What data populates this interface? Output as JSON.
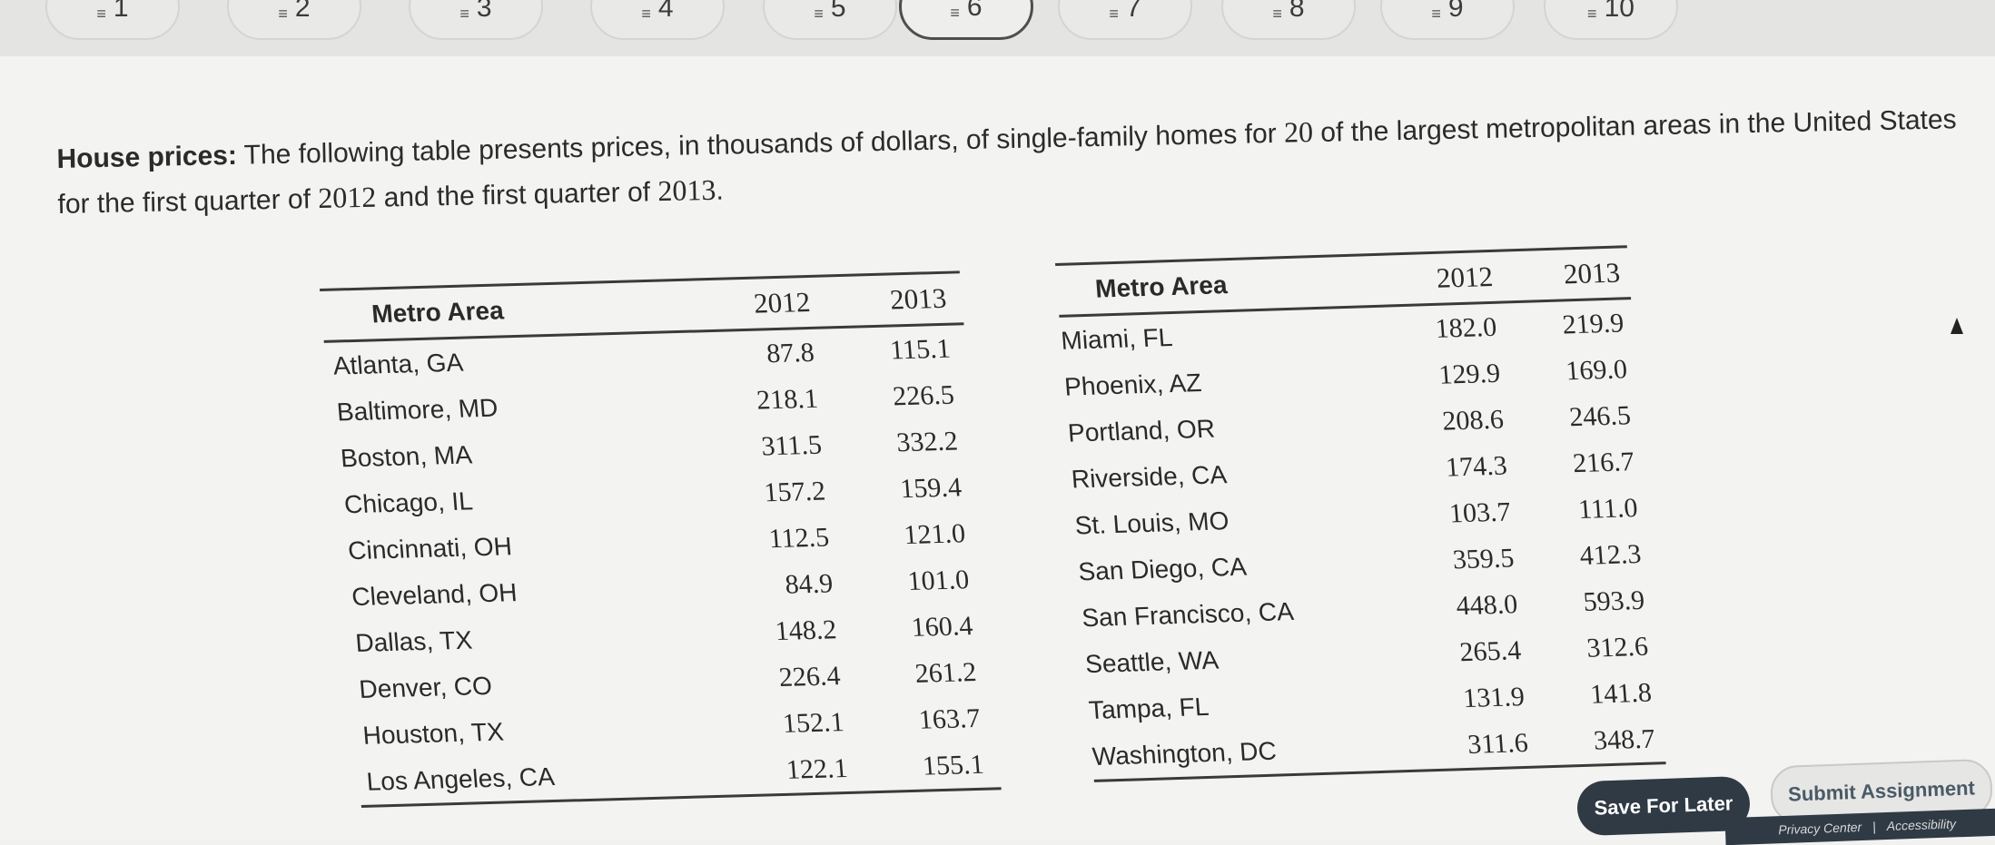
{
  "question_nav": [
    {
      "label": "1",
      "active": false
    },
    {
      "label": "2",
      "active": false
    },
    {
      "label": "3",
      "active": false
    },
    {
      "label": "4",
      "active": false
    },
    {
      "label": "5",
      "active": false
    },
    {
      "label": "6",
      "active": true
    },
    {
      "label": "7",
      "active": false
    },
    {
      "label": "8",
      "active": false
    },
    {
      "label": "9",
      "active": false
    },
    {
      "label": "10",
      "active": false
    }
  ],
  "prompt": {
    "title": "House prices:",
    "text_1": " The following table presents prices, in thousands of dollars, of single-family homes for ",
    "num_1": "20",
    "text_2": " of the largest metropolitan areas in the United States for the first quarter of ",
    "num_2": "2012",
    "text_3": " and the first quarter of ",
    "num_3": "2013",
    "text_4": "."
  },
  "table_left": {
    "headers": [
      "Metro Area",
      "2012",
      "2013"
    ],
    "rows": [
      [
        "Atlanta, GA",
        "87.8",
        "115.1"
      ],
      [
        "Baltimore, MD",
        "218.1",
        "226.5"
      ],
      [
        "Boston, MA",
        "311.5",
        "332.2"
      ],
      [
        "Chicago, IL",
        "157.2",
        "159.4"
      ],
      [
        "Cincinnati, OH",
        "112.5",
        "121.0"
      ],
      [
        "Cleveland, OH",
        "84.9",
        "101.0"
      ],
      [
        "Dallas, TX",
        "148.2",
        "160.4"
      ],
      [
        "Denver, CO",
        "226.4",
        "261.2"
      ],
      [
        "Houston, TX",
        "152.1",
        "163.7"
      ],
      [
        "Los Angeles, CA",
        "122.1",
        "155.1"
      ]
    ]
  },
  "table_right": {
    "headers": [
      "Metro Area",
      "2012",
      "2013"
    ],
    "rows": [
      [
        "Miami, FL",
        "182.0",
        "219.9"
      ],
      [
        "Phoenix, AZ",
        "129.9",
        "169.0"
      ],
      [
        "Portland, OR",
        "208.6",
        "246.5"
      ],
      [
        "Riverside, CA",
        "174.3",
        "216.7"
      ],
      [
        "St. Louis, MO",
        "103.7",
        "111.0"
      ],
      [
        "San Diego, CA",
        "359.5",
        "412.3"
      ],
      [
        "San Francisco, CA",
        "448.0",
        "593.9"
      ],
      [
        "Seattle, WA",
        "265.4",
        "312.6"
      ],
      [
        "Tampa, FL",
        "131.9",
        "141.8"
      ],
      [
        "Washington, DC",
        "311.6",
        "348.7"
      ]
    ]
  },
  "actions": {
    "save_label": "Save For Later",
    "submit_label": "Submit Assignment"
  },
  "footer": {
    "privacy": "Privacy Center",
    "separator": "|",
    "accessibility": "Accessibility"
  }
}
